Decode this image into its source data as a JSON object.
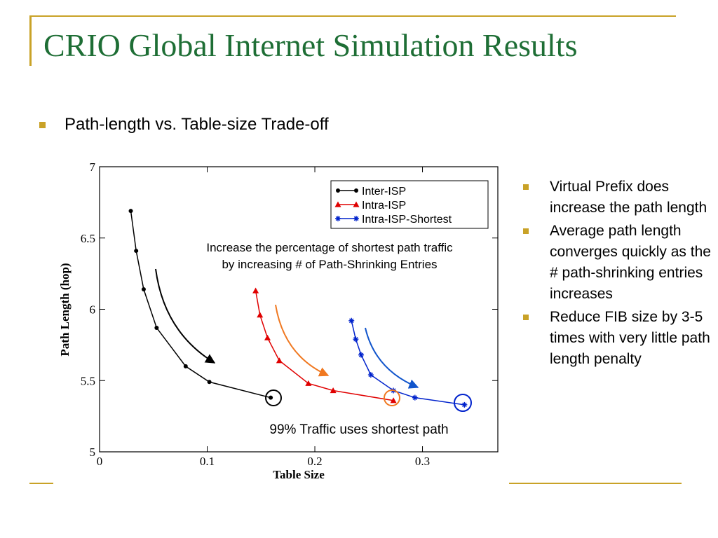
{
  "slide": {
    "title": "CRIO Global Internet Simulation Results",
    "main_bullet": "Path-length vs. Table-size Trade-off",
    "side_bullets": [
      "Virtual Prefix does increase the path length",
      "Average path length converges quickly as the # path-shrinking entries increases",
      "Reduce FIB size by 3-5 times with very little path length penalty"
    ]
  },
  "chart_data": {
    "type": "line",
    "xlabel": "Table Size",
    "ylabel": "Path Length (hop)",
    "xlim": [
      0,
      0.37
    ],
    "ylim": [
      5,
      7
    ],
    "xticks": [
      "0",
      "0.1",
      "0.2",
      "0.3"
    ],
    "yticks": [
      "5",
      "5.5",
      "6",
      "6.5",
      "7"
    ],
    "legend_position": "top-right",
    "series": [
      {
        "name": "Inter-ISP",
        "color": "#000000",
        "marker": "circle",
        "x": [
          0.029,
          0.034,
          0.041,
          0.053,
          0.08,
          0.102,
          0.159
        ],
        "y": [
          6.69,
          6.41,
          6.14,
          5.87,
          5.6,
          5.49,
          5.38
        ]
      },
      {
        "name": "Intra-ISP",
        "color": "#e00000",
        "marker": "triangle",
        "x": [
          0.145,
          0.149,
          0.156,
          0.167,
          0.194,
          0.217,
          0.273
        ],
        "y": [
          6.13,
          5.96,
          5.8,
          5.64,
          5.48,
          5.43,
          5.36
        ]
      },
      {
        "name": "Intra-ISP-Shortest",
        "color": "#0022cc",
        "marker": "star",
        "x": [
          0.234,
          0.238,
          0.243,
          0.252,
          0.273,
          0.293,
          0.339
        ],
        "y": [
          5.92,
          5.79,
          5.68,
          5.54,
          5.43,
          5.38,
          5.33
        ]
      }
    ],
    "annotations": {
      "top_text_line1": "Increase the percentage of shortest path traffic",
      "top_text_line2": "by increasing # of Path-Shrinking Entries",
      "bottom_text": "99% Traffic uses shortest path",
      "arrow_colors": [
        "#000000",
        "#f07820",
        "#1155cc"
      ],
      "circle_colors": [
        "#000000",
        "#f07820",
        "#0022cc"
      ]
    }
  }
}
